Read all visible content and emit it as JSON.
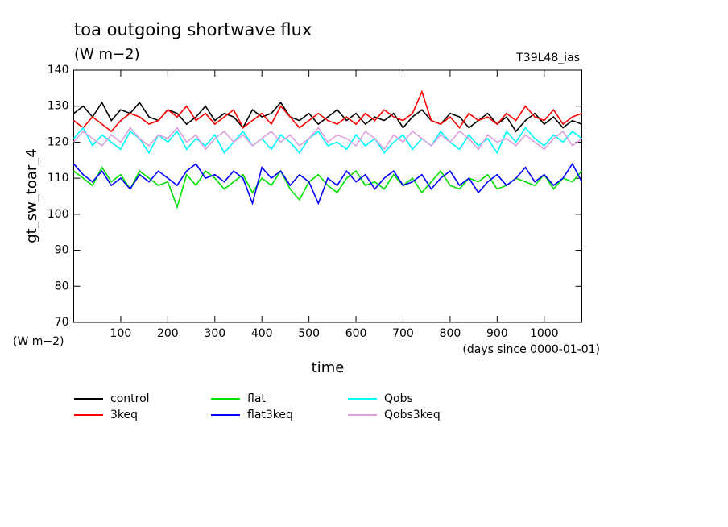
{
  "chart_data": {
    "type": "line",
    "title": "toa outgoing shortwave flux",
    "subtitle": "(W m−2)",
    "annotation": "T39L48_ias",
    "y_label": "gt_sw_toar_4",
    "y_unit": "(W m−2)",
    "x_label": "time",
    "x_unit": "(days since 0000-01-01)",
    "x": [
      0,
      20,
      40,
      60,
      80,
      100,
      120,
      140,
      160,
      180,
      200,
      220,
      240,
      260,
      280,
      300,
      320,
      340,
      360,
      380,
      400,
      420,
      440,
      460,
      480,
      500,
      520,
      540,
      560,
      580,
      600,
      620,
      640,
      660,
      680,
      700,
      720,
      740,
      760,
      780,
      800,
      820,
      840,
      860,
      880,
      900,
      920,
      940,
      960,
      980,
      1000,
      1020,
      1040,
      1060,
      1080
    ],
    "xlim": [
      0,
      1080
    ],
    "xticks": [
      100,
      200,
      300,
      400,
      500,
      600,
      700,
      800,
      900,
      1000
    ],
    "ylim": [
      70,
      140
    ],
    "yticks": [
      70,
      80,
      90,
      100,
      110,
      120,
      130,
      140
    ],
    "series": [
      {
        "name": "control",
        "color": "#000000",
        "values": [
          128,
          130,
          127,
          131,
          126,
          129,
          128,
          131,
          127,
          126,
          129,
          128,
          125,
          127,
          130,
          126,
          128,
          127,
          124,
          129,
          127,
          128,
          131,
          127,
          126,
          128,
          125,
          127,
          129,
          126,
          128,
          125,
          127,
          126,
          128,
          124,
          127,
          129,
          126,
          125,
          128,
          127,
          124,
          126,
          128,
          125,
          127,
          123,
          126,
          128,
          125,
          127,
          124,
          126,
          125
        ]
      },
      {
        "name": "3keq",
        "color": "#ff0000",
        "values": [
          126,
          124,
          127,
          125,
          123,
          126,
          128,
          127,
          125,
          126,
          129,
          127,
          130,
          126,
          128,
          125,
          127,
          129,
          124,
          126,
          128,
          125,
          130,
          127,
          124,
          126,
          128,
          126,
          125,
          127,
          125,
          128,
          126,
          129,
          127,
          126,
          128,
          134,
          126,
          125,
          127,
          124,
          128,
          126,
          127,
          125,
          128,
          126,
          130,
          127,
          126,
          129,
          125,
          127,
          128
        ]
      },
      {
        "name": "flat",
        "color": "#00e000",
        "values": [
          112,
          110,
          108,
          113,
          109,
          111,
          107,
          112,
          110,
          108,
          109,
          102,
          111,
          108,
          112,
          110,
          107,
          109,
          111,
          106,
          110,
          108,
          112,
          107,
          104,
          109,
          111,
          108,
          106,
          110,
          112,
          108,
          109,
          107,
          111,
          108,
          110,
          106,
          109,
          112,
          108,
          107,
          110,
          109,
          111,
          107,
          108,
          110,
          109,
          108,
          111,
          107,
          110,
          109,
          112
        ]
      },
      {
        "name": "flat3keq",
        "color": "#0000ff",
        "values": [
          114,
          111,
          109,
          112,
          108,
          110,
          107,
          111,
          109,
          112,
          110,
          108,
          112,
          114,
          110,
          111,
          109,
          112,
          110,
          103,
          113,
          110,
          112,
          108,
          111,
          109,
          103,
          110,
          108,
          112,
          109,
          111,
          107,
          110,
          112,
          108,
          109,
          111,
          107,
          110,
          112,
          108,
          110,
          106,
          109,
          111,
          108,
          110,
          113,
          109,
          111,
          108,
          110,
          114,
          109
        ]
      },
      {
        "name": "Qobs",
        "color": "#00ffff",
        "values": [
          121,
          124,
          119,
          122,
          120,
          118,
          123,
          121,
          117,
          122,
          120,
          123,
          118,
          121,
          119,
          122,
          117,
          120,
          123,
          119,
          121,
          118,
          122,
          120,
          117,
          121,
          123,
          119,
          120,
          118,
          122,
          119,
          121,
          117,
          120,
          122,
          118,
          121,
          119,
          123,
          120,
          118,
          122,
          119,
          121,
          117,
          123,
          120,
          124,
          121,
          119,
          122,
          120,
          123,
          121
        ]
      },
      {
        "name": "Qobs3keq",
        "color": "#dda0dd",
        "values": [
          120,
          123,
          121,
          119,
          122,
          120,
          124,
          121,
          119,
          122,
          121,
          124,
          120,
          122,
          118,
          121,
          123,
          120,
          122,
          119,
          121,
          123,
          120,
          122,
          119,
          121,
          124,
          120,
          122,
          121,
          119,
          123,
          121,
          118,
          122,
          120,
          123,
          121,
          119,
          122,
          120,
          123,
          121,
          118,
          122,
          120,
          121,
          119,
          122,
          120,
          118,
          121,
          123,
          119,
          121
        ]
      }
    ]
  }
}
